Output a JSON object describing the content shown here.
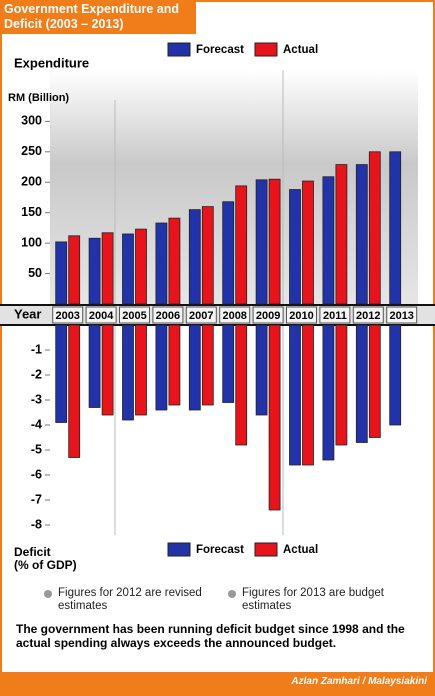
{
  "title": "Government Expenditure and Deficit (2003 – 2013)",
  "chart_data": [
    {
      "type": "bar",
      "title": "Expenditure",
      "ylabel": "RM (Billion)",
      "xlabel": "Year",
      "categories": [
        "2003",
        "2004",
        "2005",
        "2006",
        "2007",
        "2008",
        "2009",
        "2010",
        "2011",
        "2012",
        "2013"
      ],
      "series": [
        {
          "name": "Forecast",
          "color": "#2233aa",
          "values": [
            102,
            108,
            115,
            133,
            155,
            168,
            204,
            188,
            209,
            229,
            250
          ]
        },
        {
          "name": "Actual",
          "color": "#e8141c",
          "values": [
            112,
            117,
            123,
            141,
            160,
            194,
            205,
            202,
            229,
            250,
            null
          ]
        }
      ],
      "ylim": [
        0,
        340
      ],
      "yticks": [
        50,
        100,
        150,
        200,
        250,
        300
      ]
    },
    {
      "type": "bar",
      "title": "Deficit",
      "ylabel": "(% of GDP)",
      "series": [
        {
          "name": "Forecast",
          "color": "#2233aa",
          "values": [
            -3.9,
            -3.3,
            -3.8,
            -3.4,
            -3.4,
            -3.1,
            -3.6,
            -5.6,
            -5.4,
            -4.7,
            -4.0
          ]
        },
        {
          "name": "Actual",
          "color": "#e8141c",
          "values": [
            -5.3,
            -3.6,
            -3.6,
            -3.2,
            -3.2,
            -4.8,
            -7.4,
            -5.6,
            -4.8,
            -4.5,
            null
          ]
        }
      ],
      "ylim": [
        -8.4,
        0
      ],
      "yticks": [
        -1,
        -2,
        -3,
        -4,
        -5,
        -6,
        -7,
        -8
      ]
    }
  ],
  "notes": [
    "Figures for 2012 are revised estimates",
    "Figures for 2013 are budget estimates"
  ],
  "footnote": "The government has been running deficit budget since 1998 and the actual spending always exceeds the announced budget.",
  "credit": "Azlan Zamhari / Malaysiakini"
}
